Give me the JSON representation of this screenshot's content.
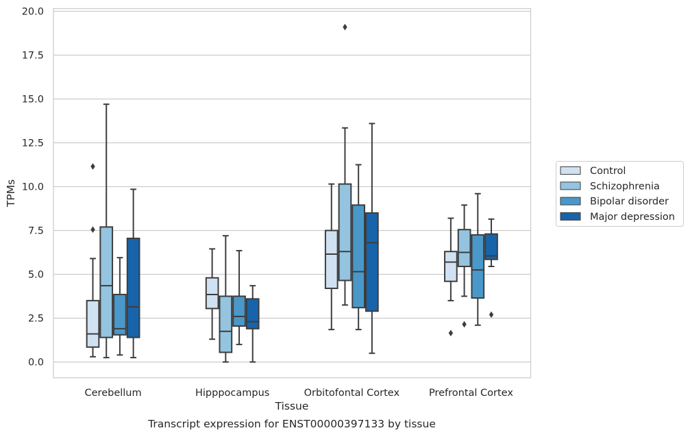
{
  "chart_data": {
    "type": "box",
    "title": "Transcript expression for ENST00000397133 by tissue",
    "xlabel": "Tissue",
    "ylabel": "TPMs",
    "ylim": [
      -0.9,
      20.1
    ],
    "yticks": [
      0.0,
      2.5,
      5.0,
      7.5,
      10.0,
      12.5,
      15.0,
      17.5,
      20.0
    ],
    "ytick_labels": [
      "0.0",
      "2.5",
      "5.0",
      "7.5",
      "10.0",
      "12.5",
      "15.0",
      "17.5",
      "20.0"
    ],
    "grid": "horizontal",
    "legend_position": "right",
    "categories": [
      "Cerebellum",
      "Hipppocampus",
      "Orbitofontal Cortex",
      "Prefrontal Cortex"
    ],
    "series": [
      {
        "name": "Control",
        "color": "#d0e1f2",
        "boxes": [
          {
            "whislo": 0.3,
            "q1": 0.85,
            "med": 1.6,
            "q3": 3.5,
            "whishi": 5.9,
            "fliers": [
              7.55,
              11.15
            ]
          },
          {
            "whislo": 1.3,
            "q1": 3.05,
            "med": 3.85,
            "q3": 4.8,
            "whishi": 6.45,
            "fliers": []
          },
          {
            "whislo": 1.85,
            "q1": 4.2,
            "med": 6.15,
            "q3": 7.5,
            "whishi": 10.15,
            "fliers": []
          },
          {
            "whislo": 3.5,
            "q1": 4.6,
            "med": 5.7,
            "q3": 6.3,
            "whishi": 8.2,
            "fliers": [
              1.65
            ]
          }
        ]
      },
      {
        "name": "Schizophrenia",
        "color": "#94c4df",
        "boxes": [
          {
            "whislo": 0.25,
            "q1": 1.4,
            "med": 4.35,
            "q3": 7.7,
            "whishi": 14.7,
            "fliers": []
          },
          {
            "whislo": 0.0,
            "q1": 0.55,
            "med": 1.75,
            "q3": 3.75,
            "whishi": 7.2,
            "fliers": []
          },
          {
            "whislo": 3.25,
            "q1": 4.65,
            "med": 6.3,
            "q3": 10.15,
            "whishi": 13.35,
            "fliers": [
              19.1
            ]
          },
          {
            "whislo": 3.75,
            "q1": 5.45,
            "med": 6.25,
            "q3": 7.55,
            "whishi": 8.95,
            "fliers": [
              2.15
            ]
          }
        ]
      },
      {
        "name": "Bipolar disorder",
        "color": "#4a98c9",
        "boxes": [
          {
            "whislo": 0.4,
            "q1": 1.55,
            "med": 1.9,
            "q3": 3.85,
            "whishi": 5.95,
            "fliers": []
          },
          {
            "whislo": 1.0,
            "q1": 2.05,
            "med": 2.6,
            "q3": 3.75,
            "whishi": 6.35,
            "fliers": []
          },
          {
            "whislo": 1.85,
            "q1": 3.1,
            "med": 5.15,
            "q3": 8.95,
            "whishi": 11.25,
            "fliers": []
          },
          {
            "whislo": 2.1,
            "q1": 3.65,
            "med": 5.25,
            "q3": 7.25,
            "whishi": 9.6,
            "fliers": []
          }
        ]
      },
      {
        "name": "Major depression",
        "color": "#1764ab",
        "boxes": [
          {
            "whislo": 0.25,
            "q1": 1.4,
            "med": 3.15,
            "q3": 7.05,
            "whishi": 9.85,
            "fliers": []
          },
          {
            "whislo": 0.0,
            "q1": 1.9,
            "med": 2.3,
            "q3": 3.6,
            "whishi": 4.35,
            "fliers": []
          },
          {
            "whislo": 0.5,
            "q1": 2.9,
            "med": 6.8,
            "q3": 8.5,
            "whishi": 13.6,
            "fliers": []
          },
          {
            "whislo": 5.45,
            "q1": 5.85,
            "med": 6.05,
            "q3": 7.3,
            "whishi": 8.15,
            "fliers": [
              2.7
            ]
          }
        ]
      }
    ]
  }
}
